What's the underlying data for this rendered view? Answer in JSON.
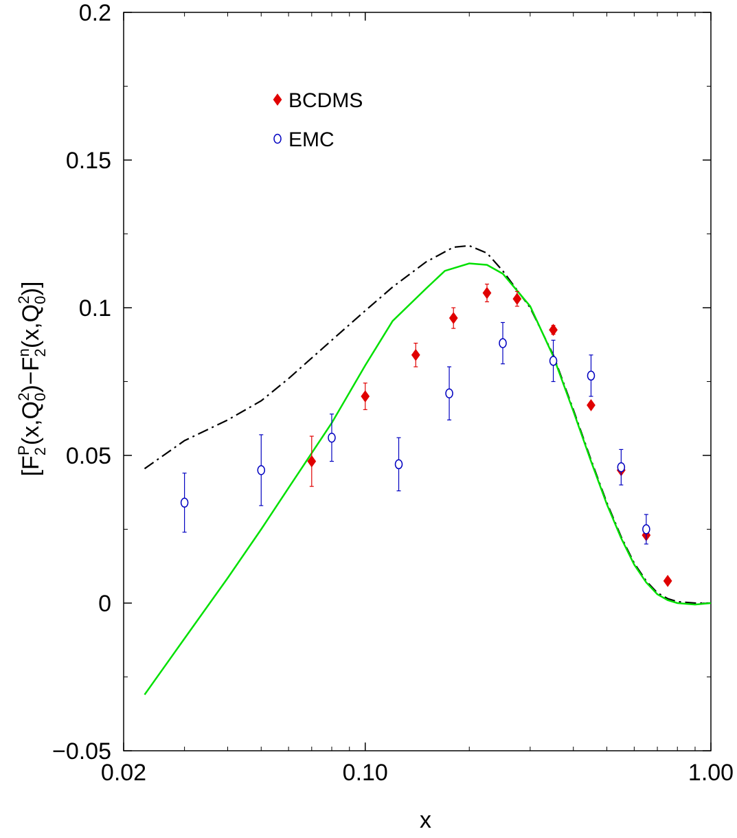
{
  "chart_data": {
    "type": "scatter",
    "title": "",
    "xlabel": "x",
    "ylabel": {
      "parts": [
        "[F",
        "2",
        "P",
        "(x,Q",
        "0",
        "2",
        ")−F",
        "2",
        "n",
        "(x,Q",
        "0",
        "2",
        ")]"
      ]
    },
    "x_scale": "log",
    "xlim": [
      0.02,
      1.0
    ],
    "ylim": [
      -0.05,
      0.2
    ],
    "x_ticks": [
      {
        "value": 0.02,
        "label": "0.02"
      },
      {
        "value": 0.1,
        "label": "0.10"
      },
      {
        "value": 1.0,
        "label": "1.00"
      }
    ],
    "y_ticks": [
      {
        "value": -0.05,
        "label": "−0.05"
      },
      {
        "value": 0,
        "label": "0"
      },
      {
        "value": 0.05,
        "label": "0.05"
      },
      {
        "value": 0.1,
        "label": "0.1"
      },
      {
        "value": 0.15,
        "label": "0.15"
      },
      {
        "value": 0.2,
        "label": "0.2"
      }
    ],
    "grid": false,
    "legend_position": "top-left",
    "series": [
      {
        "name": "BCDMS",
        "marker": "filled-diamond",
        "color": "#e00000",
        "points": [
          {
            "x": 0.07,
            "y": 0.048,
            "err": 0.0085
          },
          {
            "x": 0.1,
            "y": 0.07,
            "err": 0.0045
          },
          {
            "x": 0.14,
            "y": 0.084,
            "err": 0.004
          },
          {
            "x": 0.18,
            "y": 0.0965,
            "err": 0.0035
          },
          {
            "x": 0.225,
            "y": 0.105,
            "err": 0.003
          },
          {
            "x": 0.275,
            "y": 0.103,
            "err": 0.0025
          },
          {
            "x": 0.35,
            "y": 0.0925,
            "err": 0.0015
          },
          {
            "x": 0.45,
            "y": 0.067,
            "err": 0.001
          },
          {
            "x": 0.55,
            "y": 0.045,
            "err": 0.0008
          },
          {
            "x": 0.65,
            "y": 0.023,
            "err": 0.0006
          },
          {
            "x": 0.75,
            "y": 0.0075,
            "err": 0.0004
          }
        ]
      },
      {
        "name": "EMC",
        "marker": "open-circle",
        "color": "#0000c0",
        "points": [
          {
            "x": 0.03,
            "y": 0.034,
            "err": 0.01
          },
          {
            "x": 0.05,
            "y": 0.045,
            "err": 0.012
          },
          {
            "x": 0.08,
            "y": 0.056,
            "err": 0.008
          },
          {
            "x": 0.125,
            "y": 0.047,
            "err": 0.009
          },
          {
            "x": 0.175,
            "y": 0.071,
            "err": 0.009
          },
          {
            "x": 0.25,
            "y": 0.088,
            "err": 0.007
          },
          {
            "x": 0.35,
            "y": 0.082,
            "err": 0.007
          },
          {
            "x": 0.45,
            "y": 0.077,
            "err": 0.007
          },
          {
            "x": 0.55,
            "y": 0.046,
            "err": 0.006
          },
          {
            "x": 0.65,
            "y": 0.025,
            "err": 0.005
          }
        ]
      }
    ],
    "curves": [
      {
        "style": "dash-dot",
        "color": "#000000",
        "points": [
          [
            0.023,
            0.0455
          ],
          [
            0.03,
            0.055
          ],
          [
            0.04,
            0.062
          ],
          [
            0.05,
            0.0685
          ],
          [
            0.06,
            0.076
          ],
          [
            0.08,
            0.089
          ],
          [
            0.1,
            0.099
          ],
          [
            0.12,
            0.107
          ],
          [
            0.15,
            0.1155
          ],
          [
            0.18,
            0.1205
          ],
          [
            0.2,
            0.121
          ],
          [
            0.225,
            0.1185
          ],
          [
            0.25,
            0.1125
          ],
          [
            0.3,
            0.1
          ],
          [
            0.35,
            0.084
          ],
          [
            0.4,
            0.0655
          ],
          [
            0.45,
            0.0485
          ],
          [
            0.5,
            0.034
          ],
          [
            0.55,
            0.0225
          ],
          [
            0.6,
            0.0135
          ],
          [
            0.65,
            0.0075
          ],
          [
            0.7,
            0.0035
          ],
          [
            0.75,
            0.0015
          ],
          [
            0.8,
            0.0005
          ],
          [
            0.9,
            0.0
          ],
          [
            1.0,
            0.0
          ]
        ]
      },
      {
        "style": "solid",
        "color": "#00e000",
        "points": [
          [
            0.023,
            -0.031
          ],
          [
            0.03,
            -0.012
          ],
          [
            0.04,
            0.0085
          ],
          [
            0.05,
            0.025
          ],
          [
            0.06,
            0.039
          ],
          [
            0.08,
            0.061
          ],
          [
            0.1,
            0.0805
          ],
          [
            0.12,
            0.0955
          ],
          [
            0.15,
            0.1065
          ],
          [
            0.17,
            0.1125
          ],
          [
            0.2,
            0.115
          ],
          [
            0.225,
            0.1145
          ],
          [
            0.25,
            0.1115
          ],
          [
            0.3,
            0.1005
          ],
          [
            0.35,
            0.0835
          ],
          [
            0.4,
            0.065
          ],
          [
            0.45,
            0.048
          ],
          [
            0.5,
            0.0335
          ],
          [
            0.55,
            0.022
          ],
          [
            0.6,
            0.013
          ],
          [
            0.65,
            0.007
          ],
          [
            0.7,
            0.003
          ],
          [
            0.75,
            0.001
          ],
          [
            0.8,
            0.0
          ],
          [
            0.9,
            -0.0005
          ],
          [
            1.0,
            0.0
          ]
        ]
      }
    ]
  }
}
